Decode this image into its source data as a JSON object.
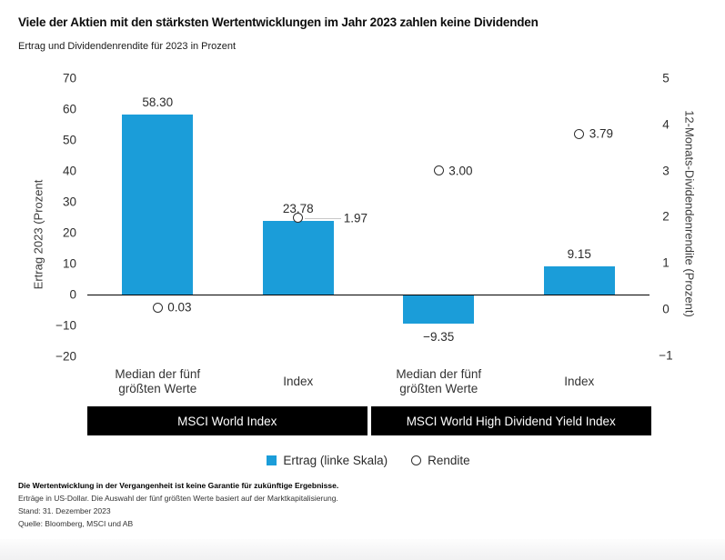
{
  "header": {
    "title": "Viele der Aktien mit den stärksten Wertentwicklungen im Jahr 2023 zahlen keine Dividenden",
    "subtitle": "Ertrag und Dividendenrendite für 2023 in Prozent"
  },
  "chart_data": {
    "type": "bar",
    "categories": [
      "Median der fünf\ngrößten Werte",
      "Index",
      "Median der fünf\ngrößten Werte",
      "Index"
    ],
    "groups": [
      "MSCI World Index",
      "MSCI World High Dividend Yield Index"
    ],
    "series": [
      {
        "name": "Ertrag (linke Skala)",
        "type": "bar",
        "axis": "left",
        "values": [
          58.3,
          23.78,
          -9.35,
          9.15
        ],
        "labels": [
          "58.30",
          "23.78",
          "−9.35",
          "9.15"
        ],
        "color": "#1B9DD9"
      },
      {
        "name": "Rendite",
        "type": "scatter",
        "axis": "right",
        "values": [
          0.03,
          1.97,
          3.0,
          3.79
        ],
        "labels": [
          "0.03",
          "1.97",
          "3.00",
          "3.79"
        ],
        "callouts": [
          false,
          true,
          false,
          false
        ]
      }
    ],
    "left_axis": {
      "label": "Ertrag 2023 (Prozent",
      "ticks": [
        70,
        60,
        50,
        40,
        30,
        20,
        10,
        0,
        -10,
        -20
      ],
      "tick_labels": [
        "70",
        "60",
        "50",
        "40",
        "30",
        "20",
        "10",
        "0",
        "−10",
        "−20"
      ],
      "range": [
        -20,
        70
      ]
    },
    "right_axis": {
      "label": "12-Monats-Dividendenrendite (Prozent)",
      "ticks": [
        5,
        4,
        3,
        2,
        1,
        0,
        -1
      ],
      "tick_labels": [
        "5",
        "4",
        "3",
        "2",
        "1",
        "0",
        "−1"
      ],
      "range": [
        -1.4,
        5
      ]
    },
    "grid": false,
    "legend_position": "bottom"
  },
  "legend": {
    "items": [
      {
        "label": "Ertrag (linke Skala)",
        "marker": "square",
        "color": "#1B9DD9"
      },
      {
        "label": "Rendite",
        "marker": "circle"
      }
    ]
  },
  "footnotes": {
    "lines": [
      "Die Wertentwicklung in der Vergangenheit ist keine Garantie für zukünftige Ergebnisse.",
      "Erträge in US-Dollar. Die Auswahl der fünf größten Werte basiert auf der Marktkapitalisierung.",
      "Stand: 31. Dezember 2023",
      "Quelle: Bloomberg, MSCI und AB"
    ]
  },
  "colors": {
    "bar_blue": "#1B9DD9",
    "band_black": "#000000",
    "zero_line": "#000000",
    "leader_gray": "#c8c8c8",
    "text_dark": "#2b2b2b"
  }
}
